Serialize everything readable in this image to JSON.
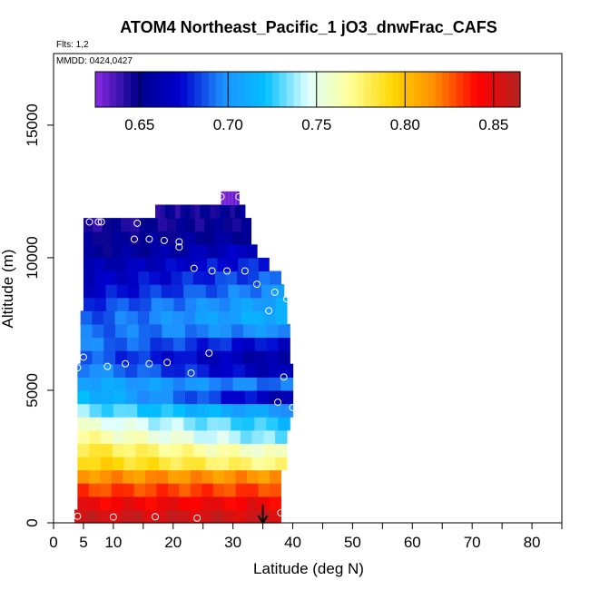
{
  "chart_data": {
    "type": "heatmap",
    "title": "ATOM4 Northeast_Pacific_1 jO3_dnwFrac_CAFS",
    "flights_label": "Flts: 1,2",
    "dates_label": "MMDD: 0424,0427",
    "xlabel": "Latitude (deg N)",
    "ylabel": "Altitude (m)",
    "xlim": [
      0,
      85
    ],
    "ylim": [
      0,
      17700
    ],
    "x_ticks": [
      0,
      5,
      10,
      20,
      30,
      40,
      50,
      60,
      70,
      80
    ],
    "x_minor_ticks": [
      15,
      25,
      35,
      45,
      55,
      65,
      75,
      85
    ],
    "y_ticks": [
      0,
      5000,
      10000,
      15000
    ],
    "colorbar": {
      "range": [
        0.625,
        0.865
      ],
      "ticks": [
        0.65,
        0.7,
        0.75,
        0.8,
        0.85
      ],
      "tick_labels": [
        "0.65",
        "0.70",
        "0.75",
        "0.80",
        "0.85"
      ],
      "colors": [
        "#8a2be2",
        "#00008b",
        "#0000cd",
        "#1e90ff",
        "#00bfff",
        "#e0ffff",
        "#ffff99",
        "#ffd700",
        "#ff8c00",
        "#ff0000",
        "#b22222"
      ]
    },
    "layers": [
      {
        "alt": 250,
        "lat_min": 3.5,
        "lat_max": 38,
        "v0": 0.855,
        "v1": 0.855
      },
      {
        "alt": 750,
        "lat_min": 4,
        "lat_max": 38,
        "v0": 0.845,
        "v1": 0.845
      },
      {
        "alt": 1250,
        "lat_min": 4,
        "lat_max": 38,
        "v0": 0.83,
        "v1": 0.83
      },
      {
        "alt": 1750,
        "lat_min": 4,
        "lat_max": 38,
        "v0": 0.815,
        "v1": 0.815
      },
      {
        "alt": 2250,
        "lat_min": 4,
        "lat_max": 39,
        "v0": 0.795,
        "v1": 0.77
      },
      {
        "alt": 2750,
        "lat_min": 4,
        "lat_max": 39,
        "v0": 0.785,
        "v1": 0.755
      },
      {
        "alt": 3250,
        "lat_min": 4,
        "lat_max": 39,
        "v0": 0.77,
        "v1": 0.73
      },
      {
        "alt": 3750,
        "lat_min": 4,
        "lat_max": 39.5,
        "v0": 0.755,
        "v1": 0.72
      },
      {
        "alt": 4250,
        "lat_min": 4,
        "lat_max": 40,
        "v0": 0.735,
        "v1": 0.7
      },
      {
        "alt": 4750,
        "lat_min": 4,
        "lat_max": 40,
        "v0": 0.72,
        "v1": 0.66
      },
      {
        "alt": 5250,
        "lat_min": 4,
        "lat_max": 40,
        "v0": 0.71,
        "v1": 0.69
      },
      {
        "alt": 5750,
        "lat_min": 4,
        "lat_max": 40,
        "v0": 0.7,
        "v1": 0.66
      },
      {
        "alt": 6250,
        "lat_min": 4.5,
        "lat_max": 39.5,
        "v0": 0.69,
        "v1": 0.655
      },
      {
        "alt": 6750,
        "lat_min": 4.5,
        "lat_max": 39.5,
        "v0": 0.695,
        "v1": 0.67
      },
      {
        "alt": 7250,
        "lat_min": 4.5,
        "lat_max": 39.5,
        "v0": 0.69,
        "v1": 0.7
      },
      {
        "alt": 7750,
        "lat_min": 4.5,
        "lat_max": 39,
        "v0": 0.685,
        "v1": 0.715
      },
      {
        "alt": 8250,
        "lat_min": 5,
        "lat_max": 39,
        "v0": 0.68,
        "v1": 0.71
      },
      {
        "alt": 8750,
        "lat_min": 5,
        "lat_max": 38.5,
        "v0": 0.67,
        "v1": 0.7
      },
      {
        "alt": 9250,
        "lat_min": 5,
        "lat_max": 38,
        "v0": 0.665,
        "v1": 0.69
      },
      {
        "alt": 9750,
        "lat_min": 5,
        "lat_max": 36,
        "v0": 0.66,
        "v1": 0.68
      },
      {
        "alt": 10250,
        "lat_min": 5,
        "lat_max": 34,
        "v0": 0.65,
        "v1": 0.67
      },
      {
        "alt": 10750,
        "lat_min": 5,
        "lat_max": 33,
        "v0": 0.65,
        "v1": 0.655
      },
      {
        "alt": 11250,
        "lat_min": 5,
        "lat_max": 33,
        "v0": 0.645,
        "v1": 0.65
      },
      {
        "alt": 11750,
        "lat_min": 17,
        "lat_max": 32,
        "v0": 0.645,
        "v1": 0.65
      },
      {
        "alt": 12250,
        "lat_min": 28,
        "lat_max": 31,
        "v0": 0.625,
        "v1": 0.63
      }
    ],
    "points": [
      {
        "lat": 4,
        "alt": 250
      },
      {
        "lat": 10,
        "alt": 220
      },
      {
        "lat": 17,
        "alt": 230
      },
      {
        "lat": 24,
        "alt": 180
      },
      {
        "lat": 38,
        "alt": 380
      },
      {
        "lat": 4,
        "alt": 5850
      },
      {
        "lat": 5,
        "alt": 6250
      },
      {
        "lat": 9,
        "alt": 5900
      },
      {
        "lat": 12,
        "alt": 6000
      },
      {
        "lat": 16,
        "alt": 6000
      },
      {
        "lat": 19,
        "alt": 6050
      },
      {
        "lat": 23,
        "alt": 5650
      },
      {
        "lat": 26,
        "alt": 6400
      },
      {
        "lat": 38.5,
        "alt": 5500
      },
      {
        "lat": 37.5,
        "alt": 4550
      },
      {
        "lat": 40,
        "alt": 4350
      },
      {
        "lat": 36,
        "alt": 8000
      },
      {
        "lat": 37,
        "alt": 8700
      },
      {
        "lat": 39,
        "alt": 8450
      },
      {
        "lat": 34,
        "alt": 9000
      },
      {
        "lat": 32,
        "alt": 9500
      },
      {
        "lat": 29,
        "alt": 9500
      },
      {
        "lat": 26.5,
        "alt": 9500
      },
      {
        "lat": 23.5,
        "alt": 9600
      },
      {
        "lat": 21,
        "alt": 10400
      },
      {
        "lat": 21,
        "alt": 10600
      },
      {
        "lat": 18.5,
        "alt": 10650
      },
      {
        "lat": 16,
        "alt": 10700
      },
      {
        "lat": 13.5,
        "alt": 10700
      },
      {
        "lat": 6,
        "alt": 11350
      },
      {
        "lat": 7.5,
        "alt": 11350
      },
      {
        "lat": 8,
        "alt": 11350
      },
      {
        "lat": 14,
        "alt": 11300
      },
      {
        "lat": 28,
        "alt": 12300
      },
      {
        "lat": 31,
        "alt": 12300
      }
    ],
    "arrow": {
      "lat": 35,
      "alt_top": 700,
      "alt_bottom": 0
    }
  }
}
